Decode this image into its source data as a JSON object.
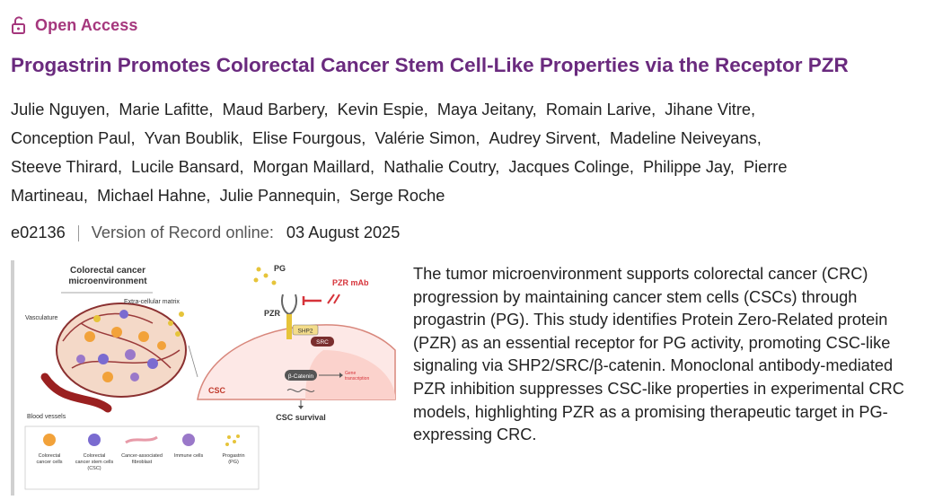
{
  "access": {
    "label": "Open Access",
    "icon": "lock-open-icon",
    "color": "#a5377d"
  },
  "article": {
    "title": "Progastrin Promotes Colorectal Cancer Stem Cell-Like Properties via the Receptor PZR",
    "title_color": "#6a2a7e",
    "authors_line1": [
      "Julie Nguyen",
      "Marie Lafitte",
      "Maud Barbery",
      "Kevin Espie",
      "Maya Jeitany",
      "Romain Larive",
      "Jihane Vitre"
    ],
    "authors_line2": [
      "Conception Paul",
      "Yvan Boublik",
      "Elise Fourgous",
      "Valérie Simon",
      "Audrey Sirvent",
      "Madeline Neiveyans"
    ],
    "authors_line3": [
      "Steeve Thirard",
      "Lucile Bansard",
      "Morgan Maillard",
      "Nathalie Coutry",
      "Jacques Colinge",
      "Philippe Jay",
      "Pierre"
    ],
    "authors_line4": [
      "Martineau",
      "Michael Hahne",
      "Julie Pannequin",
      "Serge Roche"
    ],
    "article_id": "e02136",
    "version_label": "Version of Record online:",
    "date": "03 August 2025",
    "abstract": "The tumor microenvironment supports colorectal cancer (CRC) progression by maintaining cancer stem cells (CSCs) through progastrin (PG). This study identifies Protein Zero-Related protein (PZR) as an essential receptor for PG activity, promoting CSC-like signaling via SHP2/SRC/β-catenin. Monoclonal antibody-mediated PZR inhibition suppresses CSC-like properties in experimental CRC models, highlighting PZR as a promising therapeutic target in PG-expressing CRC."
  },
  "figure": {
    "title_line1": "Colorectal cancer",
    "title_line2": "microenvironment",
    "label_vasculature": "Vasculature",
    "label_ecm": "Extra-cellular matrix",
    "label_blood": "Blood vessels",
    "label_pg": "PG",
    "label_pzr_mab": "PZR mAb",
    "label_pzr": "PZR",
    "label_shp2": "SHP2",
    "label_src": "SRC",
    "label_bcat": "β-Catenin",
    "label_gene1": "Gene",
    "label_gene2": "transcription",
    "label_csc": "CSC",
    "label_survival": "CSC survival",
    "legend": [
      {
        "l1": "Colorectal",
        "l2": "cancer cells",
        "l3": ""
      },
      {
        "l1": "Colorectal",
        "l2": "cancer stem cells",
        "l3": "(CSC)"
      },
      {
        "l1": "Cancer-associated",
        "l2": "fibroblast",
        "l3": ""
      },
      {
        "l1": "Immune cells",
        "l2": "",
        "l3": ""
      },
      {
        "l1": "Progastrin",
        "l2": "(PG)",
        "l3": ""
      }
    ],
    "colors": {
      "cancer_cell": "#f2a23a",
      "stem_cell": "#7a6bd0",
      "fibroblast": "#e79aa8",
      "immune": "#9a78c9",
      "progastrin": "#e6c43a",
      "csc_label": "#c0392b",
      "pzr_mab": "#d6333a"
    }
  }
}
